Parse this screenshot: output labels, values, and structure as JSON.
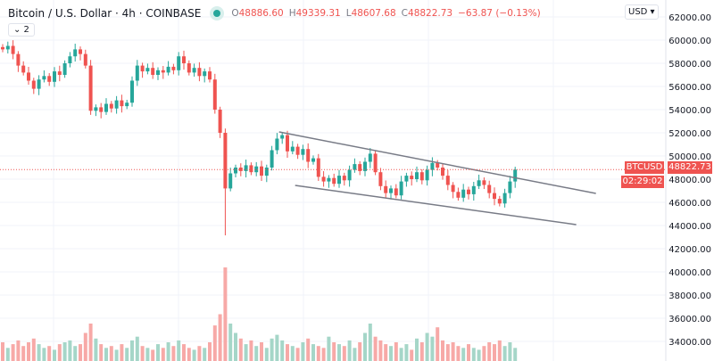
{
  "header": {
    "title": "Bitcoin / U.S. Dollar · 4h · COINBASE",
    "open_label": "O",
    "open": "48886.60",
    "high_label": "H",
    "high": "49339.31",
    "low_label": "L",
    "low": "48607.68",
    "close_label": "C",
    "close": "48822.73",
    "change": "−63.87 (−0.13%)",
    "collapse_label": "⌄ 2",
    "market_status_color": "#26a69a"
  },
  "axis": {
    "currency": "USD ▾"
  },
  "price_tag": {
    "symbol": "BTCUSD",
    "price": "48822.73",
    "countdown": "02:29:02"
  },
  "colors": {
    "up": "#26a69a",
    "down": "#ef5350",
    "volume_up": "#a5d6c8",
    "volume_down": "#f7a9a7",
    "trendline": "#787b86"
  },
  "chart_data": {
    "type": "candlestick",
    "yticks": [
      34000,
      36000,
      38000,
      40000,
      42000,
      44000,
      46000,
      48000,
      50000,
      52000,
      54000,
      56000,
      58000,
      60000,
      62000
    ],
    "ylim": [
      33000,
      63300
    ],
    "closes": [
      59200,
      59500,
      58800,
      57800,
      57200,
      56500,
      55800,
      56600,
      56900,
      56400,
      57300,
      57000,
      58000,
      58600,
      59200,
      58800,
      57800,
      53900,
      54200,
      53800,
      54500,
      54100,
      54800,
      54300,
      54600,
      56500,
      57800,
      57300,
      57600,
      57000,
      57400,
      57200,
      57700,
      57400,
      58600,
      58000,
      57200,
      57600,
      56900,
      57300,
      56600,
      54000,
      52000,
      47200,
      48500,
      49000,
      48700,
      49200,
      48600,
      49100,
      48300,
      49000,
      50500,
      51500,
      51800,
      50400,
      50800,
      50100,
      50600,
      49500,
      49800,
      48200,
      47800,
      48100,
      47600,
      48300,
      47900,
      48800,
      49300,
      48700,
      49500,
      50200,
      48600,
      47400,
      46800,
      47200,
      46600,
      47800,
      48300,
      48000,
      48600,
      47900,
      48800,
      49400,
      49000,
      48300,
      47500,
      46900,
      46400,
      47100,
      46700,
      47400,
      47900,
      47500,
      46800,
      46300,
      45900,
      46800,
      47800,
      48822.73
    ],
    "volume_relative": [
      20,
      14,
      18,
      22,
      16,
      20,
      24,
      18,
      14,
      16,
      12,
      18,
      20,
      22,
      16,
      18,
      30,
      40,
      24,
      18,
      14,
      16,
      12,
      18,
      14,
      22,
      26,
      16,
      14,
      12,
      18,
      14,
      20,
      16,
      22,
      18,
      14,
      12,
      16,
      14,
      20,
      38,
      50,
      100,
      40,
      30,
      24,
      18,
      22,
      16,
      20,
      14,
      24,
      28,
      22,
      18,
      16,
      14,
      20,
      24,
      18,
      16,
      14,
      26,
      20,
      18,
      16,
      22,
      14,
      20,
      30,
      40,
      26,
      22,
      18,
      16,
      20,
      14,
      18,
      12,
      24,
      20,
      30,
      26,
      36,
      22,
      18,
      20,
      16,
      14,
      18,
      14,
      12,
      16,
      20,
      18,
      22,
      16,
      20,
      14
    ],
    "trendlines": [
      {
        "from": [
          53.4,
          52077
        ],
        "to": [
          114.6,
          46769
        ]
      },
      {
        "from": [
          56.5,
          47462
        ],
        "to": [
          110.8,
          44077
        ]
      }
    ]
  }
}
